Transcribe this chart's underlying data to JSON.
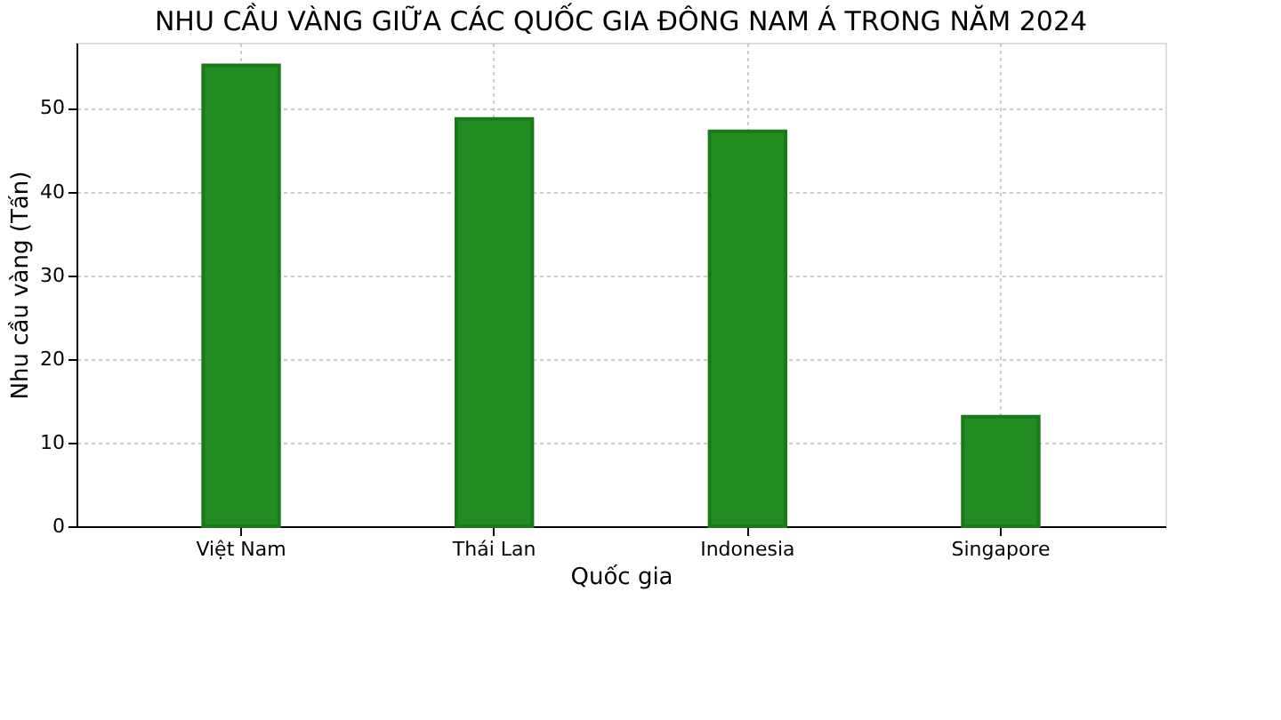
{
  "chart_data": {
    "type": "bar",
    "title": "NHU CẦU VÀNG GIỮA CÁC QUỐC GIA ĐÔNG NAM Á TRONG NĂM 2024",
    "xlabel": "Quốc gia",
    "ylabel": "Nhu cầu vàng (Tấn)",
    "categories": [
      "Việt Nam",
      "Thái Lan",
      "Indonesia",
      "Singapore"
    ],
    "values": [
      55.1,
      48.7,
      47.2,
      13.1
    ],
    "color": "#228b22",
    "ylim": [
      0,
      57.8
    ],
    "yticks": [
      0,
      10,
      20,
      30,
      40,
      50
    ],
    "grid": true
  }
}
